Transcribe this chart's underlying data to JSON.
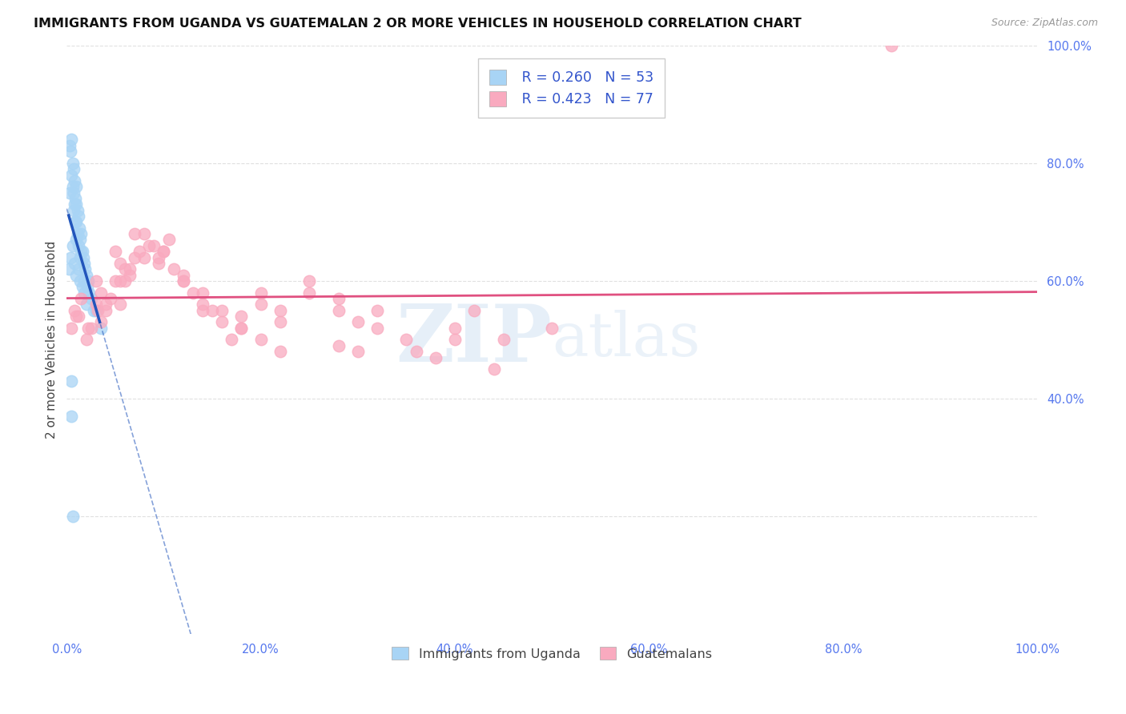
{
  "title": "IMMIGRANTS FROM UGANDA VS GUATEMALAN 2 OR MORE VEHICLES IN HOUSEHOLD CORRELATION CHART",
  "source": "Source: ZipAtlas.com",
  "ylabel": "2 or more Vehicles in Household",
  "legend_label1": "Immigrants from Uganda",
  "legend_label2": "Guatemalans",
  "R1": 0.26,
  "N1": 53,
  "R2": 0.423,
  "N2": 77,
  "blue_color": "#A8D4F5",
  "pink_color": "#F9AABF",
  "blue_line_color": "#2255BB",
  "pink_line_color": "#E05080",
  "tick_color": "#5577EE",
  "title_color": "#111111",
  "grid_color": "#DDDDDD",
  "watermark_color": "#C8DCF0",
  "blue_x": [
    0.3,
    0.3,
    0.4,
    0.5,
    0.5,
    0.6,
    0.6,
    0.7,
    0.7,
    0.7,
    0.8,
    0.8,
    0.9,
    0.9,
    1.0,
    1.0,
    1.0,
    1.0,
    1.1,
    1.1,
    1.2,
    1.2,
    1.3,
    1.4,
    1.4,
    1.5,
    1.5,
    1.6,
    1.7,
    1.8,
    1.8,
    1.9,
    2.0,
    2.1,
    2.2,
    2.3,
    2.5,
    2.8,
    3.0,
    3.5,
    0.2,
    0.4,
    0.6,
    0.8,
    1.0,
    1.2,
    1.4,
    1.6,
    1.8,
    2.0,
    0.5,
    0.5,
    0.6
  ],
  "blue_y": [
    83,
    75,
    82,
    78,
    84,
    80,
    76,
    79,
    75,
    72,
    77,
    73,
    74,
    70,
    76,
    73,
    70,
    67,
    72,
    68,
    71,
    66,
    69,
    67,
    64,
    68,
    65,
    65,
    64,
    63,
    60,
    62,
    61,
    59,
    60,
    58,
    57,
    55,
    55,
    52,
    62,
    64,
    66,
    63,
    61,
    62,
    60,
    59,
    58,
    56,
    43,
    37,
    20
  ],
  "pink_x": [
    0.5,
    0.8,
    1.0,
    1.5,
    2.0,
    2.5,
    3.0,
    3.5,
    4.0,
    5.0,
    5.5,
    6.0,
    7.0,
    8.0,
    9.0,
    10.0,
    11.0,
    12.0,
    13.0,
    14.0,
    15.0,
    16.0,
    17.0,
    18.0,
    20.0,
    22.0,
    25.0,
    28.0,
    30.0,
    32.0,
    35.0,
    38.0,
    40.0,
    42.0,
    45.0,
    50.0,
    85.0,
    1.2,
    2.2,
    3.2,
    4.5,
    5.5,
    6.5,
    7.5,
    8.5,
    9.5,
    10.5,
    12.0,
    14.0,
    16.0,
    18.0,
    20.0,
    22.0,
    25.0,
    28.0,
    32.0,
    36.0,
    40.0,
    44.0,
    28.0,
    30.0,
    3.0,
    5.0,
    7.0,
    4.0,
    6.0,
    8.0,
    10.0,
    12.0,
    14.0,
    18.0,
    20.0,
    22.0,
    3.5,
    6.5,
    5.5,
    9.5
  ],
  "pink_y": [
    52,
    55,
    54,
    57,
    50,
    52,
    56,
    58,
    55,
    60,
    63,
    62,
    64,
    68,
    66,
    65,
    62,
    60,
    58,
    56,
    55,
    53,
    50,
    54,
    58,
    55,
    60,
    57,
    53,
    55,
    50,
    47,
    52,
    55,
    50,
    52,
    100,
    54,
    52,
    55,
    57,
    60,
    62,
    65,
    66,
    64,
    67,
    61,
    58,
    55,
    52,
    56,
    53,
    58,
    55,
    52,
    48,
    50,
    45,
    49,
    48,
    60,
    65,
    68,
    56,
    60,
    64,
    65,
    60,
    55,
    52,
    50,
    48,
    53,
    61,
    56,
    63
  ],
  "xlim": [
    0,
    100
  ],
  "ylim": [
    0,
    100
  ],
  "xticks": [
    0,
    20,
    40,
    60,
    80,
    100
  ],
  "xticklabels": [
    "0.0%",
    "20.0%",
    "40.0%",
    "60.0%",
    "80.0%",
    "100.0%"
  ],
  "yticks_right": [
    40,
    60,
    80,
    100
  ],
  "yticklabels_right": [
    "40.0%",
    "60.0%",
    "80.0%",
    "100.0%"
  ]
}
